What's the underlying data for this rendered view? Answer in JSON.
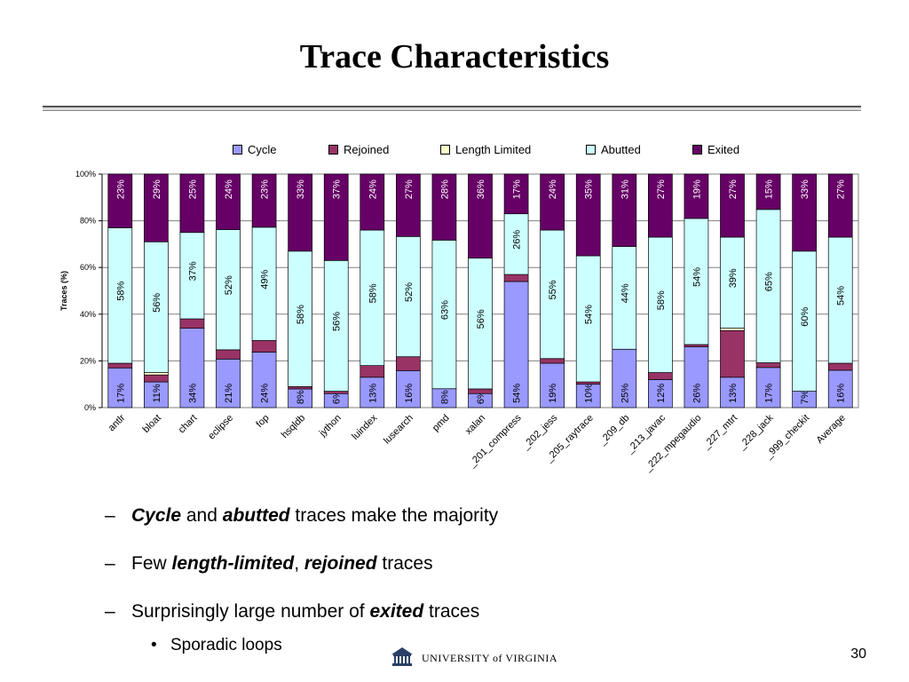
{
  "slide": {
    "title": "Trace Characteristics",
    "page_number": "30",
    "logo_text": "UNIVERSITY of VIRGINIA"
  },
  "bullets": [
    {
      "parts": [
        {
          "text": "Cycle",
          "style": "bi"
        },
        {
          "text": " and ",
          "style": "n"
        },
        {
          "text": "abutted",
          "style": "bi"
        },
        {
          "text": " traces make the majority",
          "style": "n"
        }
      ]
    },
    {
      "parts": [
        {
          "text": "Few ",
          "style": "n"
        },
        {
          "text": "length-limited",
          "style": "bi"
        },
        {
          "text": ", ",
          "style": "n"
        },
        {
          "text": "rejoined",
          "style": "bi"
        },
        {
          "text": " traces",
          "style": "n"
        }
      ]
    },
    {
      "parts": [
        {
          "text": "Surprisingly large number of ",
          "style": "n"
        },
        {
          "text": "exited",
          "style": "bi"
        },
        {
          "text": " traces",
          "style": "n"
        }
      ]
    }
  ],
  "sub_bullet": "Sporadic loops",
  "bullet_marker": "–",
  "sub_marker": "•",
  "chart_data": {
    "type": "bar",
    "stacked": true,
    "percent": true,
    "ylabel": "Traces (%)",
    "ylim": [
      0,
      100
    ],
    "yticks": [
      "0%",
      "20%",
      "40%",
      "60%",
      "80%",
      "100%"
    ],
    "grid": true,
    "legend_position": "top",
    "categories": [
      "antlr",
      "bloat",
      "chart",
      "eclipse",
      "fop",
      "hsqldb",
      "jython",
      "luindex",
      "lusearch",
      "pmd",
      "xalan",
      "_201_compress",
      "_202_jess",
      "_205_raytrace",
      "_209_db",
      "_213_javac",
      "_222_mpegaudio",
      "_227_mtrt",
      "_228_jack",
      "_999_checkit",
      "Average"
    ],
    "series": [
      {
        "name": "Cycle",
        "color": "#9999ff",
        "values": [
          17,
          11,
          34,
          21,
          24,
          8,
          6,
          13,
          16,
          8,
          6,
          54,
          19,
          10,
          25,
          12,
          26,
          13,
          17,
          7,
          16
        ],
        "labels": [
          "17%",
          "11%",
          "34%",
          "21%",
          "24%",
          "8%",
          "6%",
          "13%",
          "16%",
          "8%",
          "6%",
          "54%",
          "19%",
          "10%",
          "25%",
          "12%",
          "26%",
          "13%",
          "17%",
          "7%",
          "16%"
        ]
      },
      {
        "name": "Rejoined",
        "color": "#993366",
        "values": [
          2,
          3,
          4,
          4,
          5,
          1,
          1,
          5,
          6,
          0,
          2,
          3,
          2,
          1,
          0,
          3,
          1,
          20,
          2,
          0,
          3
        ],
        "labels": []
      },
      {
        "name": "Length Limited",
        "color": "#ffffcc",
        "values": [
          0,
          1,
          0,
          0,
          0,
          0,
          0,
          0,
          0,
          0,
          0,
          0,
          0,
          0,
          0,
          0,
          0,
          1,
          0,
          0,
          0
        ],
        "labels": []
      },
      {
        "name": "Abutted",
        "color": "#ccffff",
        "values": [
          58,
          56,
          37,
          52,
          49,
          58,
          56,
          58,
          52,
          63,
          56,
          26,
          55,
          54,
          44,
          58,
          54,
          39,
          65,
          60,
          54
        ],
        "labels": [
          "58%",
          "56%",
          "37%",
          "52%",
          "49%",
          "58%",
          "56%",
          "58%",
          "52%",
          "63%",
          "56%",
          "26%",
          "55%",
          "54%",
          "44%",
          "58%",
          "54%",
          "39%",
          "65%",
          "60%",
          "54%"
        ]
      },
      {
        "name": "Exited",
        "color": "#660066",
        "values": [
          23,
          29,
          25,
          24,
          23,
          33,
          37,
          24,
          27,
          28,
          36,
          17,
          24,
          35,
          31,
          27,
          19,
          27,
          15,
          33,
          27
        ],
        "labels": [
          "23%",
          "29%",
          "25%",
          "24%",
          "23%",
          "33%",
          "37%",
          "24%",
          "27%",
          "28%",
          "36%",
          "17%",
          "24%",
          "35%",
          "31%",
          "27%",
          "19%",
          "27%",
          "15%",
          "33%",
          "27%"
        ]
      }
    ]
  }
}
